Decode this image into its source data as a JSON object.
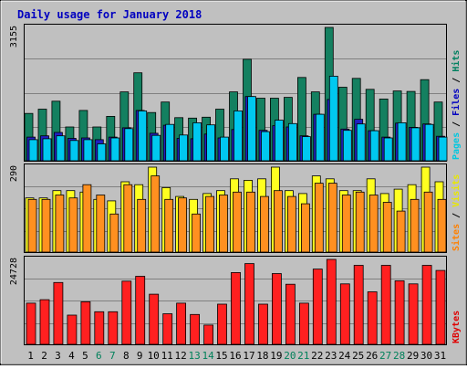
{
  "chart_data": {
    "type": "bar",
    "title": "Daily usage for January 2018",
    "categories": [
      "1",
      "2",
      "3",
      "4",
      "5",
      "6",
      "7",
      "8",
      "9",
      "10",
      "11",
      "12",
      "13",
      "14",
      "15",
      "16",
      "17",
      "18",
      "19",
      "20",
      "21",
      "22",
      "23",
      "24",
      "25",
      "26",
      "27",
      "28",
      "29",
      "30",
      "31"
    ],
    "weekend_days": [
      "6",
      "7",
      "13",
      "14",
      "20",
      "21",
      "27",
      "28"
    ],
    "panels": [
      {
        "name": "hits-files-pages",
        "ymax_label": "3155",
        "ylim": [
          0,
          3155
        ],
        "right_label_parts": [
          {
            "text": "Pages",
            "color": "#00c8e0"
          },
          {
            "text": " / ",
            "color": "#000000"
          },
          {
            "text": "Files",
            "color": "#0000c0"
          },
          {
            "text": " / ",
            "color": "#000000"
          },
          {
            "text": "Hits",
            "color": "#008060"
          }
        ],
        "series": [
          {
            "name": "Hits",
            "color": "#148060",
            "values": [
              1120,
              1220,
              1410,
              800,
              1190,
              800,
              1050,
              1630,
              2080,
              1140,
              1390,
              1020,
              1010,
              1030,
              1220,
              1630,
              2400,
              1480,
              1480,
              1500,
              1970,
              1630,
              3155,
              1740,
              1950,
              1690,
              1460,
              1650,
              1640,
              1920,
              1390
            ]
          },
          {
            "name": "Files",
            "color": "#2020c0",
            "values": [
              560,
              590,
              670,
              530,
              540,
              500,
              560,
              780,
              1190,
              650,
              840,
              530,
              520,
              630,
              540,
              740,
              1520,
              720,
              830,
              800,
              590,
              1100,
              1450,
              750,
              980,
              710,
              560,
              890,
              790,
              870,
              580
            ]
          },
          {
            "name": "Pages",
            "color": "#00c8f0",
            "values": [
              500,
              520,
              590,
              480,
              500,
              400,
              540,
              760,
              1180,
              600,
              860,
              610,
              900,
              850,
              560,
              1180,
              1520,
              690,
              960,
              880,
              570,
              1100,
              2000,
              720,
              870,
              710,
              540,
              900,
              780,
              860,
              560
            ]
          }
        ]
      },
      {
        "name": "visits-sites",
        "ymax_label": "290",
        "ylim": [
          0,
          290
        ],
        "right_label_parts": [
          {
            "text": "Sites",
            "color": "#ff8000"
          },
          {
            "text": " / ",
            "color": "#000000"
          },
          {
            "text": "Visits",
            "color": "#e8e800"
          }
        ],
        "series": [
          {
            "name": "Visits",
            "color": "#ffff20",
            "values": [
              185,
              185,
              210,
              210,
              205,
              180,
              175,
              240,
              230,
              290,
              220,
              190,
              180,
              200,
              210,
              250,
              245,
              250,
              290,
              210,
              200,
              260,
              250,
              210,
              210,
              250,
              200,
              215,
              230,
              290,
              240
            ]
          },
          {
            "name": "Sites",
            "color": "#ff9020",
            "values": [
              180,
              180,
              195,
              185,
              230,
              195,
              130,
              230,
              180,
              260,
              180,
              185,
              130,
              190,
              195,
              205,
              205,
              190,
              210,
              190,
              165,
              235,
              235,
              195,
              205,
              195,
              170,
              140,
              180,
              205,
              180
            ]
          }
        ]
      },
      {
        "name": "kbytes",
        "ymax_label": "24728",
        "ylim": [
          0,
          24728
        ],
        "right_label_parts": [
          {
            "text": "KBytes",
            "color": "#e00000"
          }
        ],
        "series": [
          {
            "name": "KBytes",
            "color": "#ff2020",
            "values": [
              12000,
              13000,
              18000,
              8500,
              12400,
              9500,
              9500,
              18400,
              19800,
              14600,
              8900,
              12000,
              8700,
              5600,
              11700,
              20900,
              23500,
              11700,
              20600,
              17500,
              12000,
              21900,
              24728,
              17600,
              23000,
              15300,
              23000,
              18500,
              17600,
              23000,
              21500
            ]
          }
        ]
      }
    ]
  }
}
